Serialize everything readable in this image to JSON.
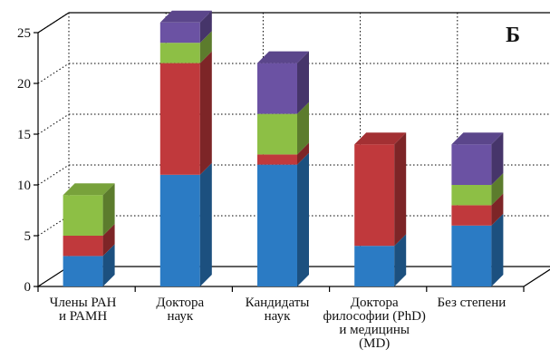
{
  "chart_data": {
    "type": "bar",
    "stacked": true,
    "three_d": true,
    "panel_label": "Б",
    "title": "",
    "xlabel": "",
    "ylabel": "",
    "ylim": [
      0,
      25
    ],
    "yticks": [
      0,
      5,
      10,
      15,
      20,
      25
    ],
    "grid": true,
    "legend": "none",
    "categories": [
      [
        "Члены РАН",
        "и РАМН"
      ],
      [
        "Доктора",
        "наук"
      ],
      [
        "Кандидаты",
        "наук"
      ],
      [
        "Доктора",
        "философии  (PhD)",
        "и медицины",
        "(MD)"
      ],
      [
        "Без степени"
      ]
    ],
    "series": [
      {
        "color": "#2b7bc4",
        "values": [
          3,
          11,
          12,
          4,
          6
        ]
      },
      {
        "color": "#c0393c",
        "values": [
          2,
          11,
          1,
          10,
          2
        ]
      },
      {
        "color": "#8dbf45",
        "values": [
          4,
          2,
          4,
          0,
          2
        ]
      },
      {
        "color": "#6b52a3",
        "values": [
          0,
          2,
          5,
          0,
          4
        ]
      }
    ]
  }
}
